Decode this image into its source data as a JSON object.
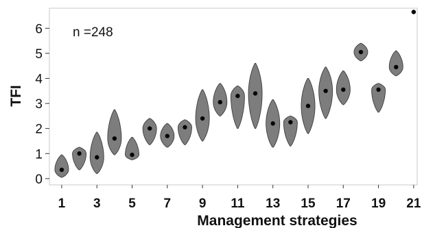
{
  "chart_data": {
    "type": "violin",
    "xlabel": "Management strategies",
    "ylabel": "TFI",
    "annotation": "n =248",
    "ylim": [
      -0.25,
      6.8
    ],
    "xlim": [
      0.3,
      21.2
    ],
    "y_ticks": [
      0,
      1,
      2,
      3,
      4,
      5,
      6
    ],
    "x_ticks": [
      1,
      3,
      5,
      7,
      9,
      11,
      13,
      15,
      17,
      19,
      21
    ],
    "grid": false,
    "colors": {
      "fill": "#7d7d7d",
      "outline": "#3d3d3d",
      "median": "#050505"
    },
    "series": [
      {
        "x": 1,
        "median": 0.35,
        "min": 0.05,
        "max": 0.95
      },
      {
        "x": 2,
        "median": 1.0,
        "min": 0.35,
        "max": 1.25
      },
      {
        "x": 3,
        "median": 0.85,
        "min": 0.2,
        "max": 1.85
      },
      {
        "x": 4,
        "median": 1.6,
        "min": 0.95,
        "max": 2.75
      },
      {
        "x": 5,
        "median": 0.95,
        "min": 0.75,
        "max": 1.65
      },
      {
        "x": 6,
        "median": 2.0,
        "min": 1.35,
        "max": 2.4
      },
      {
        "x": 7,
        "median": 1.7,
        "min": 1.25,
        "max": 2.2
      },
      {
        "x": 8,
        "median": 2.05,
        "min": 1.35,
        "max": 2.35
      },
      {
        "x": 9,
        "median": 2.4,
        "min": 1.5,
        "max": 3.55
      },
      {
        "x": 10,
        "median": 3.05,
        "min": 2.5,
        "max": 3.8
      },
      {
        "x": 11,
        "median": 3.3,
        "min": 2.0,
        "max": 3.7
      },
      {
        "x": 12,
        "median": 3.4,
        "min": 2.0,
        "max": 4.6
      },
      {
        "x": 13,
        "median": 2.2,
        "min": 1.25,
        "max": 3.15
      },
      {
        "x": 14,
        "median": 2.25,
        "min": 1.3,
        "max": 2.5
      },
      {
        "x": 15,
        "median": 2.9,
        "min": 1.8,
        "max": 4.0
      },
      {
        "x": 16,
        "median": 3.5,
        "min": 2.4,
        "max": 4.45
      },
      {
        "x": 17,
        "median": 3.55,
        "min": 2.95,
        "max": 4.3
      },
      {
        "x": 18,
        "median": 5.05,
        "min": 4.7,
        "max": 5.4
      },
      {
        "x": 19,
        "median": 3.55,
        "min": 2.65,
        "max": 3.8
      },
      {
        "x": 20,
        "median": 4.45,
        "min": 4.1,
        "max": 5.1
      },
      {
        "x": 21,
        "median": 6.65,
        "min": 6.65,
        "max": 6.65
      }
    ]
  }
}
